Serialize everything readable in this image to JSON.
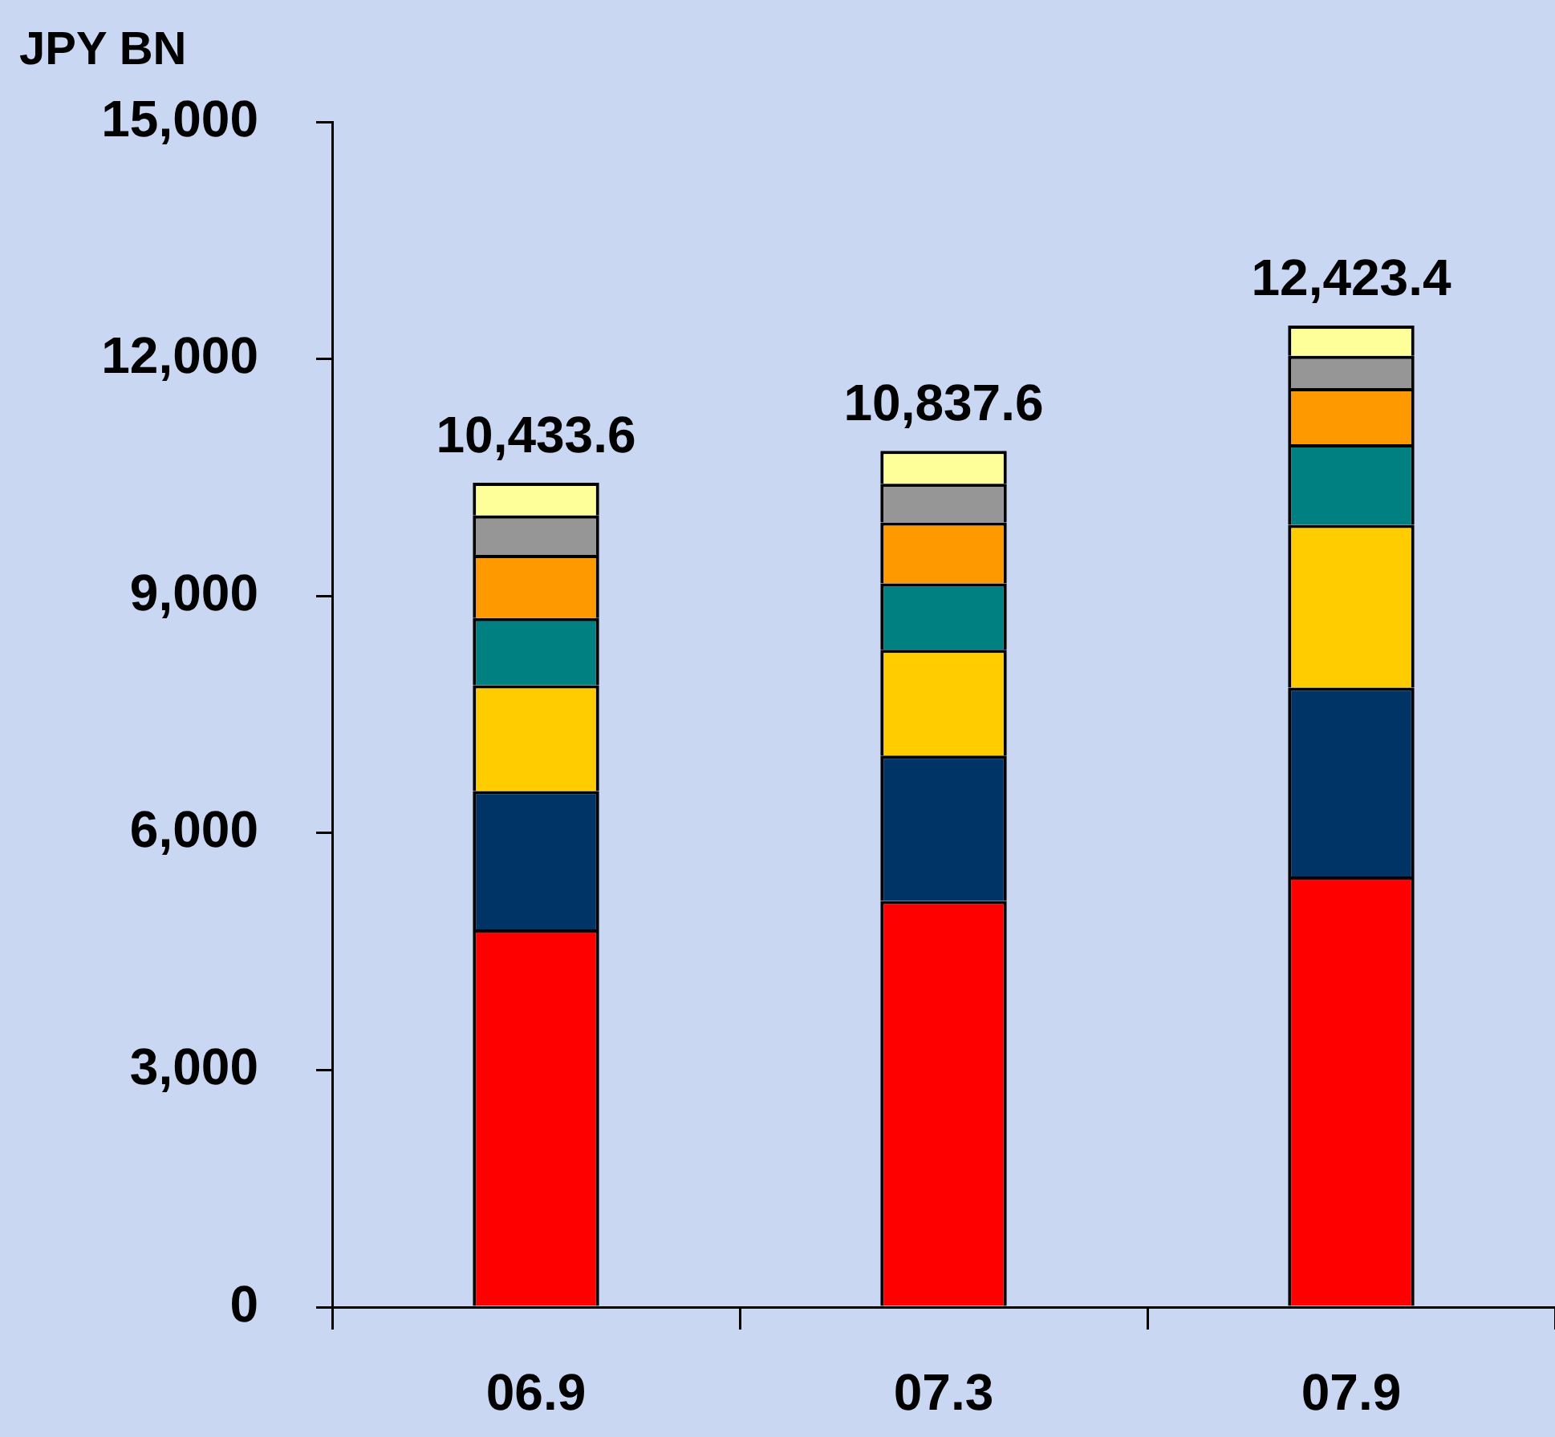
{
  "chart_data": {
    "type": "bar",
    "stacked": true,
    "ylabel": "JPY BN",
    "categories": [
      "06.9",
      "07.3",
      "07.9"
    ],
    "series": [
      {
        "color": "#ff0000",
        "values": [
          4780,
          5140,
          5450
        ]
      },
      {
        "color": "#003366",
        "values": [
          1750,
          1840,
          2390
        ]
      },
      {
        "color": "#ffcc00",
        "values": [
          1340,
          1340,
          2060
        ]
      },
      {
        "color": "#008080",
        "values": [
          850,
          840,
          1020
        ]
      },
      {
        "color": "#ff9900",
        "values": [
          800,
          770,
          710
        ]
      },
      {
        "color": "#969696",
        "values": [
          500,
          490,
          410
        ]
      },
      {
        "color": "#ffff99",
        "values": [
          413.6,
          417.6,
          383.4
        ]
      }
    ],
    "totals": [
      "10,433.6",
      "10,837.6",
      "12,423.4"
    ],
    "ylim": [
      0,
      15000
    ],
    "yticks": [
      {
        "value": 0,
        "label": "0"
      },
      {
        "value": 3000,
        "label": "3,000"
      },
      {
        "value": 6000,
        "label": "6,000"
      },
      {
        "value": 9000,
        "label": "9,000"
      },
      {
        "value": 12000,
        "label": "12,000"
      },
      {
        "value": 15000,
        "label": "15,000"
      }
    ],
    "grid": false,
    "legend": false
  }
}
